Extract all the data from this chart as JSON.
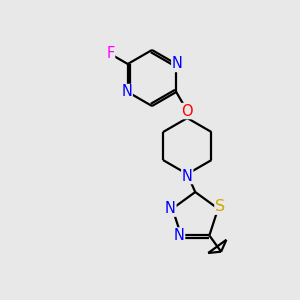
{
  "bg_color": "#e8e8e8",
  "bond_color": "#000000",
  "bond_width": 1.6,
  "atom_colors": {
    "N": "#0000ff",
    "O": "#ff0000",
    "S": "#ccaa00",
    "F": "#ff00ff",
    "C": "#000000"
  },
  "font_size_atom": 10.5
}
